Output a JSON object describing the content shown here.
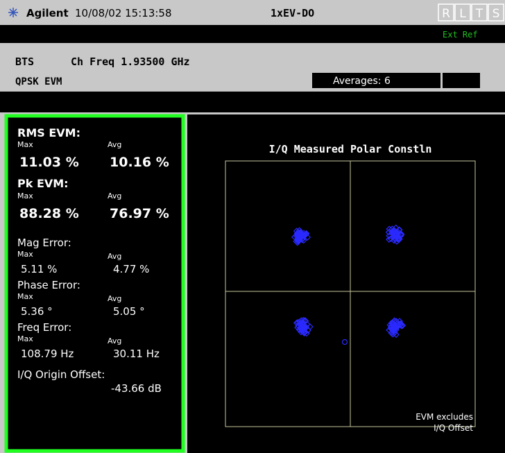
{
  "header": {
    "brand": "Agilent",
    "datetime": "10/08/02 15:13:58",
    "mode": "1xEV-DO",
    "status_letters": [
      "R",
      "L",
      "T",
      "S"
    ],
    "ext_ref": "Ext Ref"
  },
  "info": {
    "line1": "BTS",
    "freq": "Ch Freq 1.93500 GHz",
    "line2": "QPSK EVM",
    "averages": "Averages: 6"
  },
  "results": {
    "rms_evm": {
      "title": "RMS EVM:",
      "max_label": "Max",
      "avg_label": "Avg",
      "max": "11.03 %",
      "avg": "10.16 %"
    },
    "pk_evm": {
      "title": "Pk EVM:",
      "max_label": "Max",
      "avg_label": "Avg",
      "max": "88.28 %",
      "avg": "76.97 %"
    },
    "mag_error": {
      "title": "Mag Error:",
      "max_label": "Max",
      "avg_label": "Avg",
      "max": "5.11 %",
      "avg": "4.77 %"
    },
    "phase_error": {
      "title": "Phase Error:",
      "max_label": "Max",
      "avg_label": "Avg",
      "max": "5.36 °",
      "avg": "5.05 °"
    },
    "freq_error": {
      "title": "Freq Error:",
      "max_label": "Max",
      "avg_label": "Avg",
      "max": "108.79 Hz",
      "avg": "30.11 Hz"
    },
    "iq_offset": {
      "title": "I/Q Origin Offset:",
      "value": "-43.66 dB"
    }
  },
  "plot": {
    "title": "I/Q Measured Polar Constln",
    "note_line1": "EVM excludes",
    "note_line2": "I/Q Offset"
  }
}
